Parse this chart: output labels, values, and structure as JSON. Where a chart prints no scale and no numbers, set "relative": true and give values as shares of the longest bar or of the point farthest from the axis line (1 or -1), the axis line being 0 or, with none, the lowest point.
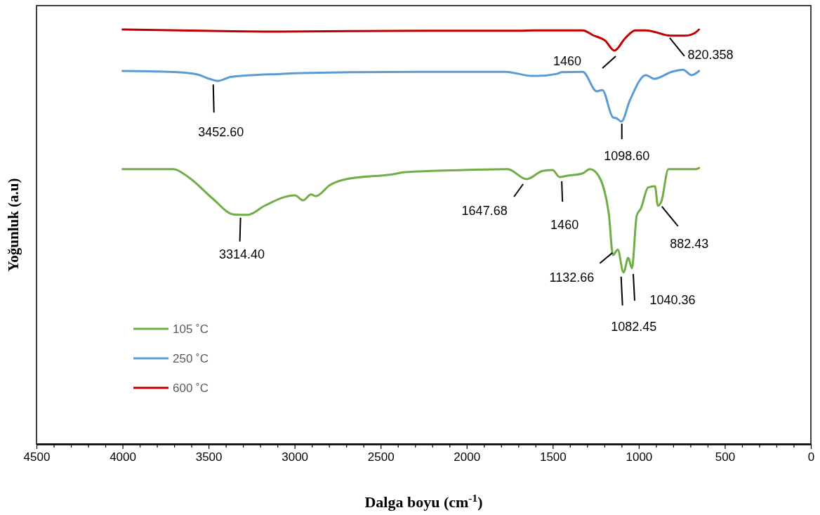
{
  "chart_data": {
    "type": "line",
    "relative": true,
    "xlabel": "Dalga boyu (cm$^{-1}$)",
    "ylabel": "Yoğunluk (a.u)",
    "xlim": [
      4500,
      0
    ],
    "xticks": [
      4500,
      {
        "value": 4400,
        "label": null
      },
      {
        "value": 4300,
        "label": null
      },
      {
        "value": 4200,
        "label": null
      },
      {
        "value": 4100,
        "label": null
      },
      4000,
      {
        "value": 3900,
        "label": null
      },
      {
        "value": 3800,
        "label": null
      },
      {
        "value": 3700,
        "label": null
      },
      {
        "value": 3600,
        "label": null
      },
      3500,
      {
        "value": 3400,
        "label": null
      },
      {
        "value": 3300,
        "label": null
      },
      {
        "value": 3200,
        "label": null
      },
      {
        "value": 3100,
        "label": null
      },
      3000,
      {
        "value": 2900,
        "label": null
      },
      {
        "value": 2800,
        "label": null
      },
      {
        "value": 2700,
        "label": null
      },
      {
        "value": 2600,
        "label": null
      },
      2500,
      {
        "value": 2400,
        "label": null
      },
      {
        "value": 2300,
        "label": null
      },
      {
        "value": 2200,
        "label": null
      },
      {
        "value": 2100,
        "label": null
      },
      2000,
      {
        "value": 1900,
        "label": null
      },
      {
        "value": 1800,
        "label": null
      },
      {
        "value": 1700,
        "label": null
      },
      {
        "value": 1600,
        "label": null
      },
      1500,
      {
        "value": 1400,
        "label": null
      },
      {
        "value": 1300,
        "label": null
      },
      {
        "value": 1200,
        "label": null
      },
      {
        "value": 1100,
        "label": null
      },
      1000,
      {
        "value": 900,
        "label": null
      },
      {
        "value": 800,
        "label": null
      },
      {
        "value": 700,
        "label": null
      },
      {
        "value": 600,
        "label": null
      },
      500,
      {
        "value": 400,
        "label": null
      },
      {
        "value": 300,
        "label": null
      },
      {
        "value": 200,
        "label": null
      },
      {
        "value": 100,
        "label": null
      },
      0
    ],
    "legend": "bottom left",
    "grid": false,
    "marker": "none",
    "line_style": "solid",
    "series": [
      {
        "name": "105 ˚C",
        "color": "#70ad47",
        "x": [
          4000,
          3704,
          3611,
          3476,
          3354,
          3272,
          3174,
          2999,
          2950,
          2905,
          2876,
          2794,
          2701,
          2427,
          2358,
          2019,
          1762,
          1652,
          1558,
          1501,
          1460,
          1419,
          1326,
          1285,
          1244,
          1175,
          1150,
          1122,
          1089,
          1061,
          1040,
          1012,
          988,
          946,
          906,
          889,
          869,
          828,
          673,
          650
        ],
        "values": [
          0.663,
          0.663,
          0.642,
          0.592,
          0.554,
          0.553,
          0.575,
          0.6,
          0.588,
          0.602,
          0.598,
          0.625,
          0.639,
          0.651,
          0.656,
          0.661,
          0.663,
          0.639,
          0.659,
          0.661,
          0.644,
          0.647,
          0.653,
          0.663,
          0.653,
          0.558,
          0.456,
          0.469,
          0.414,
          0.449,
          0.424,
          0.551,
          0.568,
          0.619,
          0.622,
          0.575,
          0.585,
          0.663,
          0.663,
          0.666
        ]
      },
      {
        "name": "250 ˚C",
        "color": "#5b9bd5",
        "x": [
          4000,
          3733,
          3570,
          3488,
          3447,
          3366,
          3080,
          2672,
          2264,
          1775,
          1620,
          1591,
          1477,
          1448,
          1326,
          1244,
          1212,
          1150,
          1130,
          1101,
          1052,
          959,
          910,
          808,
          743,
          693,
          650
        ],
        "values": [
          0.9,
          0.898,
          0.892,
          0.88,
          0.876,
          0.886,
          0.893,
          0.897,
          0.898,
          0.898,
          0.888,
          0.888,
          0.893,
          0.897,
          0.898,
          0.851,
          0.854,
          0.788,
          0.786,
          0.778,
          0.829,
          0.89,
          0.881,
          0.898,
          0.903,
          0.89,
          0.9
        ]
      },
      {
        "name": "600 ˚C",
        "color": "#c00000",
        "x": [
          4000,
          3529,
          3080,
          2264,
          1693,
          1611,
          1326,
          1265,
          1195,
          1142,
          1081,
          1020,
          959,
          897,
          836,
          795,
          734,
          673,
          650
        ],
        "values": [
          1.0,
          0.997,
          0.995,
          0.997,
          0.997,
          0.998,
          0.998,
          0.986,
          0.973,
          0.949,
          0.978,
          0.998,
          0.998,
          0.993,
          0.986,
          0.985,
          0.985,
          0.992,
          1.0
        ]
      }
    ],
    "annotations": [
      {
        "text": "820.358",
        "x": 820.358,
        "y": 0.985
      },
      {
        "text": "1460",
        "x": 1142,
        "y": 0.949
      },
      {
        "text": "3452.60",
        "x": 3452.6,
        "y": 0.876
      },
      {
        "text": "1098.60",
        "x": 1098.6,
        "y": 0.778
      },
      {
        "text": "3314.40",
        "x": 3314.4,
        "y": 0.553
      },
      {
        "text": "1647.68",
        "x": 1647.68,
        "y": 0.639
      },
      {
        "text": "1460",
        "x": 1460,
        "y": 0.644
      },
      {
        "text": "1132.66",
        "x": 1132.66,
        "y": 0.47
      },
      {
        "text": "882.43",
        "x": 882.43,
        "y": 0.578
      },
      {
        "text": "1082.45",
        "x": 1082.45,
        "y": 0.414
      },
      {
        "text": "1040.36",
        "x": 1040.36,
        "y": 0.424
      }
    ]
  }
}
